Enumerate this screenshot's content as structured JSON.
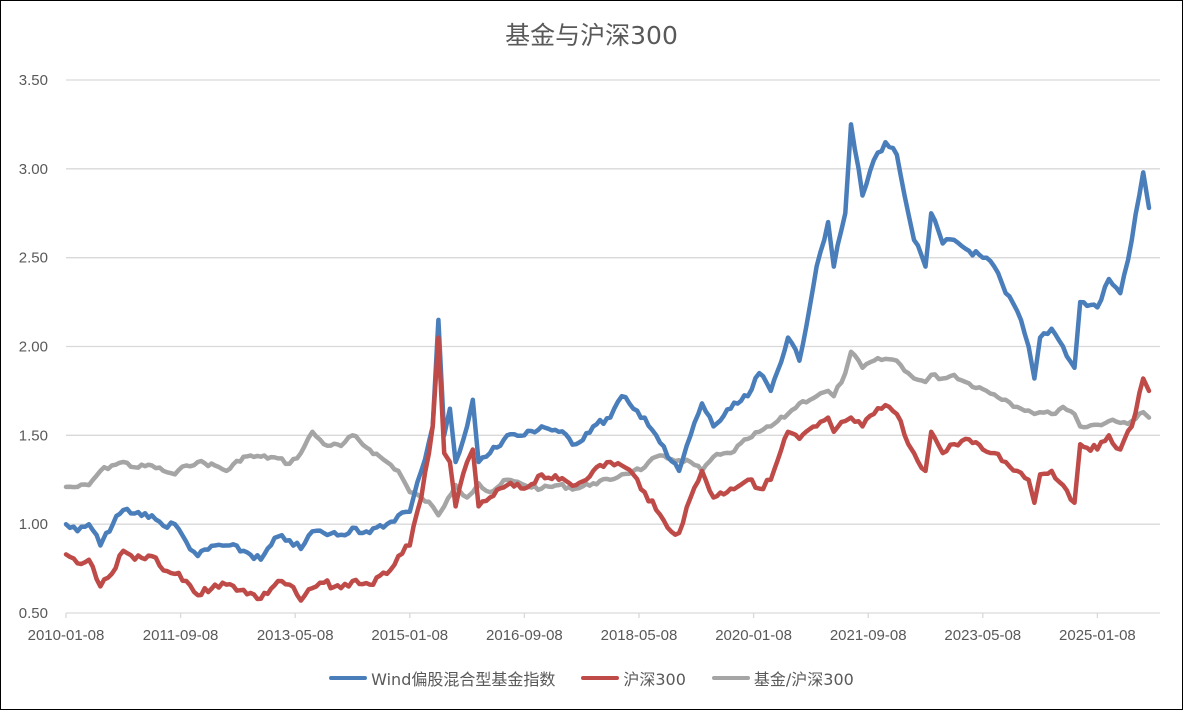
{
  "chart_data": {
    "type": "line",
    "title": "基金与沪深300",
    "xlabel": "",
    "ylabel": "",
    "ylim": [
      0.5,
      3.5
    ],
    "yticks": [
      "3.50",
      "3.00",
      "2.50",
      "2.00",
      "1.50",
      "1.00",
      "0.50"
    ],
    "xticks": [
      "2010-01-08",
      "2011-09-08",
      "2013-05-08",
      "2015-01-08",
      "2016-09-08",
      "2018-05-08",
      "2020-01-08",
      "2021-09-08",
      "2023-05-08",
      "2025-01-08"
    ],
    "grid": true,
    "legend_position": "bottom",
    "series": [
      {
        "name": "Wind偏股混合型基金指数",
        "color": "#4A7EBB",
        "points": [
          [
            "2010-01",
            1.0
          ],
          [
            "2010-03",
            0.96
          ],
          [
            "2010-05",
            1.0
          ],
          [
            "2010-07",
            0.88
          ],
          [
            "2010-08",
            0.95
          ],
          [
            "2010-11",
            1.08
          ],
          [
            "2011-01",
            1.06
          ],
          [
            "2011-04",
            1.05
          ],
          [
            "2011-06",
            0.99
          ],
          [
            "2011-08",
            1.0
          ],
          [
            "2011-10",
            0.9
          ],
          [
            "2011-12",
            0.82
          ],
          [
            "2012-03",
            0.88
          ],
          [
            "2012-05",
            0.88
          ],
          [
            "2012-08",
            0.85
          ],
          [
            "2012-11",
            0.8
          ],
          [
            "2013-02",
            0.93
          ],
          [
            "2013-04",
            0.91
          ],
          [
            "2013-06",
            0.86
          ],
          [
            "2013-08",
            0.96
          ],
          [
            "2013-10",
            0.95
          ],
          [
            "2014-01",
            0.94
          ],
          [
            "2014-03",
            0.98
          ],
          [
            "2014-06",
            0.95
          ],
          [
            "2014-09",
            1.0
          ],
          [
            "2014-11",
            1.05
          ],
          [
            "2015-01",
            1.07
          ],
          [
            "2015-03",
            1.3
          ],
          [
            "2015-05",
            1.55
          ],
          [
            "2015-06",
            2.15
          ],
          [
            "2015-07",
            1.5
          ],
          [
            "2015-08",
            1.65
          ],
          [
            "2015-09",
            1.35
          ],
          [
            "2015-11",
            1.55
          ],
          [
            "2015-12",
            1.7
          ],
          [
            "2016-01",
            1.35
          ],
          [
            "2016-03",
            1.4
          ],
          [
            "2016-06",
            1.5
          ],
          [
            "2016-09",
            1.5
          ],
          [
            "2016-12",
            1.55
          ],
          [
            "2017-03",
            1.52
          ],
          [
            "2017-06",
            1.45
          ],
          [
            "2017-09",
            1.55
          ],
          [
            "2017-12",
            1.6
          ],
          [
            "2018-02",
            1.72
          ],
          [
            "2018-04",
            1.65
          ],
          [
            "2018-06",
            1.6
          ],
          [
            "2018-08",
            1.5
          ],
          [
            "2018-10",
            1.38
          ],
          [
            "2018-12",
            1.3
          ],
          [
            "2019-02",
            1.5
          ],
          [
            "2019-04",
            1.68
          ],
          [
            "2019-06",
            1.55
          ],
          [
            "2019-09",
            1.65
          ],
          [
            "2019-12",
            1.72
          ],
          [
            "2020-02",
            1.85
          ],
          [
            "2020-04",
            1.75
          ],
          [
            "2020-07",
            2.05
          ],
          [
            "2020-09",
            1.92
          ],
          [
            "2020-12",
            2.45
          ],
          [
            "2021-02",
            2.7
          ],
          [
            "2021-03",
            2.45
          ],
          [
            "2021-05",
            2.75
          ],
          [
            "2021-06",
            3.25
          ],
          [
            "2021-08",
            2.85
          ],
          [
            "2021-10",
            3.05
          ],
          [
            "2021-12",
            3.15
          ],
          [
            "2022-02",
            3.08
          ],
          [
            "2022-04",
            2.75
          ],
          [
            "2022-05",
            2.6
          ],
          [
            "2022-07",
            2.45
          ],
          [
            "2022-08",
            2.75
          ],
          [
            "2022-10",
            2.58
          ],
          [
            "2022-12",
            2.6
          ],
          [
            "2023-02",
            2.55
          ],
          [
            "2023-05",
            2.5
          ],
          [
            "2023-07",
            2.45
          ],
          [
            "2023-09",
            2.3
          ],
          [
            "2023-11",
            2.2
          ],
          [
            "2024-01",
            2.0
          ],
          [
            "2024-02",
            1.82
          ],
          [
            "2024-03",
            2.05
          ],
          [
            "2024-05",
            2.1
          ],
          [
            "2024-07",
            2.0
          ],
          [
            "2024-09",
            1.88
          ],
          [
            "2024-10",
            2.25
          ],
          [
            "2025-01",
            2.22
          ],
          [
            "2025-03",
            2.38
          ],
          [
            "2025-05",
            2.3
          ],
          [
            "2025-07",
            2.6
          ],
          [
            "2025-09",
            2.98
          ],
          [
            "2025-10",
            2.78
          ]
        ]
      },
      {
        "name": "沪深300",
        "color": "#BE4B48",
        "points": [
          [
            "2010-01",
            0.83
          ],
          [
            "2010-03",
            0.78
          ],
          [
            "2010-05",
            0.8
          ],
          [
            "2010-07",
            0.65
          ],
          [
            "2010-09",
            0.72
          ],
          [
            "2010-11",
            0.85
          ],
          [
            "2011-01",
            0.8
          ],
          [
            "2011-04",
            0.82
          ],
          [
            "2011-06",
            0.74
          ],
          [
            "2011-08",
            0.72
          ],
          [
            "2011-10",
            0.68
          ],
          [
            "2011-12",
            0.6
          ],
          [
            "2012-03",
            0.66
          ],
          [
            "2012-05",
            0.66
          ],
          [
            "2012-08",
            0.63
          ],
          [
            "2012-11",
            0.58
          ],
          [
            "2013-02",
            0.68
          ],
          [
            "2013-04",
            0.66
          ],
          [
            "2013-06",
            0.57
          ],
          [
            "2013-08",
            0.64
          ],
          [
            "2013-10",
            0.67
          ],
          [
            "2014-01",
            0.64
          ],
          [
            "2014-03",
            0.68
          ],
          [
            "2014-06",
            0.66
          ],
          [
            "2014-09",
            0.72
          ],
          [
            "2014-11",
            0.82
          ],
          [
            "2015-01",
            0.88
          ],
          [
            "2015-03",
            1.15
          ],
          [
            "2015-05",
            1.55
          ],
          [
            "2015-06",
            2.05
          ],
          [
            "2015-07",
            1.4
          ],
          [
            "2015-08",
            1.35
          ],
          [
            "2015-09",
            1.1
          ],
          [
            "2015-11",
            1.35
          ],
          [
            "2015-12",
            1.42
          ],
          [
            "2016-01",
            1.1
          ],
          [
            "2016-03",
            1.15
          ],
          [
            "2016-06",
            1.22
          ],
          [
            "2016-09",
            1.2
          ],
          [
            "2016-12",
            1.28
          ],
          [
            "2017-03",
            1.25
          ],
          [
            "2017-06",
            1.22
          ],
          [
            "2017-09",
            1.3
          ],
          [
            "2017-12",
            1.35
          ],
          [
            "2018-02",
            1.33
          ],
          [
            "2018-04",
            1.28
          ],
          [
            "2018-06",
            1.18
          ],
          [
            "2018-08",
            1.08
          ],
          [
            "2018-10",
            0.98
          ],
          [
            "2018-12",
            0.95
          ],
          [
            "2019-02",
            1.15
          ],
          [
            "2019-04",
            1.3
          ],
          [
            "2019-06",
            1.15
          ],
          [
            "2019-09",
            1.2
          ],
          [
            "2019-12",
            1.25
          ],
          [
            "2020-02",
            1.2
          ],
          [
            "2020-04",
            1.25
          ],
          [
            "2020-07",
            1.52
          ],
          [
            "2020-09",
            1.48
          ],
          [
            "2020-12",
            1.55
          ],
          [
            "2021-02",
            1.6
          ],
          [
            "2021-03",
            1.52
          ],
          [
            "2021-05",
            1.58
          ],
          [
            "2021-06",
            1.6
          ],
          [
            "2021-08",
            1.55
          ],
          [
            "2021-10",
            1.62
          ],
          [
            "2021-12",
            1.67
          ],
          [
            "2022-02",
            1.62
          ],
          [
            "2022-04",
            1.45
          ],
          [
            "2022-05",
            1.4
          ],
          [
            "2022-07",
            1.3
          ],
          [
            "2022-08",
            1.52
          ],
          [
            "2022-10",
            1.4
          ],
          [
            "2022-12",
            1.45
          ],
          [
            "2023-02",
            1.48
          ],
          [
            "2023-05",
            1.42
          ],
          [
            "2023-07",
            1.4
          ],
          [
            "2023-09",
            1.35
          ],
          [
            "2023-11",
            1.3
          ],
          [
            "2024-01",
            1.25
          ],
          [
            "2024-02",
            1.12
          ],
          [
            "2024-03",
            1.28
          ],
          [
            "2024-05",
            1.3
          ],
          [
            "2024-07",
            1.22
          ],
          [
            "2024-09",
            1.12
          ],
          [
            "2024-10",
            1.45
          ],
          [
            "2025-01",
            1.42
          ],
          [
            "2025-03",
            1.5
          ],
          [
            "2025-05",
            1.42
          ],
          [
            "2025-07",
            1.55
          ],
          [
            "2025-09",
            1.82
          ],
          [
            "2025-10",
            1.75
          ]
        ]
      },
      {
        "name": "基金/沪深300",
        "color": "#A5A5A5",
        "points": [
          [
            "2010-01",
            1.21
          ],
          [
            "2010-03",
            1.21
          ],
          [
            "2010-05",
            1.22
          ],
          [
            "2010-07",
            1.3
          ],
          [
            "2010-09",
            1.33
          ],
          [
            "2010-11",
            1.35
          ],
          [
            "2011-01",
            1.32
          ],
          [
            "2011-04",
            1.33
          ],
          [
            "2011-06",
            1.3
          ],
          [
            "2011-08",
            1.28
          ],
          [
            "2011-10",
            1.33
          ],
          [
            "2011-12",
            1.35
          ],
          [
            "2012-03",
            1.33
          ],
          [
            "2012-05",
            1.3
          ],
          [
            "2012-08",
            1.38
          ],
          [
            "2012-11",
            1.38
          ],
          [
            "2013-02",
            1.37
          ],
          [
            "2013-04",
            1.34
          ],
          [
            "2013-06",
            1.4
          ],
          [
            "2013-08",
            1.52
          ],
          [
            "2013-10",
            1.45
          ],
          [
            "2014-01",
            1.44
          ],
          [
            "2014-03",
            1.5
          ],
          [
            "2014-06",
            1.42
          ],
          [
            "2014-09",
            1.35
          ],
          [
            "2014-11",
            1.3
          ],
          [
            "2015-01",
            1.18
          ],
          [
            "2015-03",
            1.15
          ],
          [
            "2015-05",
            1.1
          ],
          [
            "2015-06",
            1.05
          ],
          [
            "2015-07",
            1.1
          ],
          [
            "2015-09",
            1.22
          ],
          [
            "2015-11",
            1.15
          ],
          [
            "2015-12",
            1.18
          ],
          [
            "2016-01",
            1.23
          ],
          [
            "2016-03",
            1.18
          ],
          [
            "2016-06",
            1.25
          ],
          [
            "2016-09",
            1.22
          ],
          [
            "2016-12",
            1.2
          ],
          [
            "2017-03",
            1.22
          ],
          [
            "2017-06",
            1.2
          ],
          [
            "2017-09",
            1.23
          ],
          [
            "2017-12",
            1.25
          ],
          [
            "2018-02",
            1.28
          ],
          [
            "2018-04",
            1.3
          ],
          [
            "2018-06",
            1.32
          ],
          [
            "2018-08",
            1.38
          ],
          [
            "2018-10",
            1.37
          ],
          [
            "2018-12",
            1.36
          ],
          [
            "2019-02",
            1.35
          ],
          [
            "2019-04",
            1.3
          ],
          [
            "2019-06",
            1.38
          ],
          [
            "2019-09",
            1.4
          ],
          [
            "2019-12",
            1.48
          ],
          [
            "2020-02",
            1.52
          ],
          [
            "2020-04",
            1.55
          ],
          [
            "2020-07",
            1.62
          ],
          [
            "2020-09",
            1.68
          ],
          [
            "2020-12",
            1.72
          ],
          [
            "2021-02",
            1.75
          ],
          [
            "2021-03",
            1.72
          ],
          [
            "2021-05",
            1.85
          ],
          [
            "2021-06",
            1.97
          ],
          [
            "2021-08",
            1.88
          ],
          [
            "2021-10",
            1.92
          ],
          [
            "2021-12",
            1.93
          ],
          [
            "2022-02",
            1.92
          ],
          [
            "2022-04",
            1.85
          ],
          [
            "2022-05",
            1.82
          ],
          [
            "2022-07",
            1.8
          ],
          [
            "2022-08",
            1.84
          ],
          [
            "2022-10",
            1.82
          ],
          [
            "2022-12",
            1.84
          ],
          [
            "2023-02",
            1.8
          ],
          [
            "2023-05",
            1.76
          ],
          [
            "2023-07",
            1.73
          ],
          [
            "2023-09",
            1.7
          ],
          [
            "2023-11",
            1.66
          ],
          [
            "2024-01",
            1.64
          ],
          [
            "2024-02",
            1.62
          ],
          [
            "2024-03",
            1.63
          ],
          [
            "2024-05",
            1.62
          ],
          [
            "2024-07",
            1.66
          ],
          [
            "2024-09",
            1.62
          ],
          [
            "2024-10",
            1.55
          ],
          [
            "2025-01",
            1.56
          ],
          [
            "2025-03",
            1.58
          ],
          [
            "2025-05",
            1.57
          ],
          [
            "2025-07",
            1.58
          ],
          [
            "2025-09",
            1.63
          ],
          [
            "2025-10",
            1.6
          ]
        ]
      }
    ]
  },
  "legend": [
    {
      "label": "Wind偏股混合型基金指数",
      "color": "#4A7EBB"
    },
    {
      "label": "沪深300",
      "color": "#BE4B48"
    },
    {
      "label": "基金/沪深300",
      "color": "#A5A5A5"
    }
  ]
}
